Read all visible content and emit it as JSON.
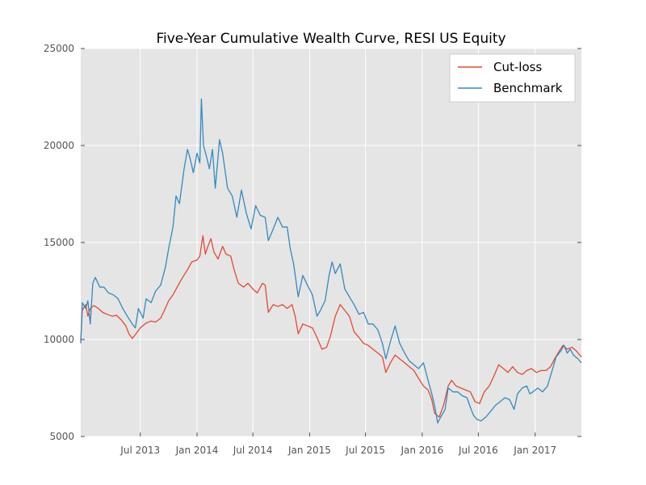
{
  "chart_data": {
    "type": "line",
    "title": "Five-Year Cumulative Wealth Curve, RESI US Equity",
    "xlabel": "",
    "ylabel": "",
    "xlim": [
      "2012-12-20",
      "2017-05-31"
    ],
    "ylim": [
      5000,
      25000
    ],
    "x_ticks": [
      "2013-07-01",
      "2014-01-01",
      "2014-07-01",
      "2015-01-01",
      "2015-07-01",
      "2016-01-01",
      "2016-07-01",
      "2017-01-01"
    ],
    "x_tick_labels": [
      "Jul 2013",
      "Jan 2014",
      "Jul 2014",
      "Jan 2015",
      "Jul 2015",
      "Jan 2016",
      "Jul 2016",
      "Jan 2017"
    ],
    "y_ticks": [
      5000,
      10000,
      15000,
      20000,
      25000
    ],
    "y_tick_labels": [
      "5000",
      "10000",
      "15000",
      "20000",
      "25000"
    ],
    "grid": true,
    "legend_position": "top-right",
    "colors": {
      "background": "#e5e5e5",
      "grid": "#ffffff"
    },
    "series": [
      {
        "name": "Cut-loss",
        "color": "#e24a33",
        "points": [
          [
            "2012-12-20",
            9900
          ],
          [
            "2012-12-25",
            11500
          ],
          [
            "2013-01-05",
            11800
          ],
          [
            "2013-01-12",
            11200
          ],
          [
            "2013-01-20",
            11600
          ],
          [
            "2013-02-01",
            11750
          ],
          [
            "2013-02-15",
            11600
          ],
          [
            "2013-03-01",
            11400
          ],
          [
            "2013-03-15",
            11300
          ],
          [
            "2013-04-01",
            11200
          ],
          [
            "2013-04-15",
            11250
          ],
          [
            "2013-05-01",
            11000
          ],
          [
            "2013-05-15",
            10700
          ],
          [
            "2013-05-25",
            10300
          ],
          [
            "2013-06-05",
            10050
          ],
          [
            "2013-06-15",
            10250
          ],
          [
            "2013-07-01",
            10600
          ],
          [
            "2013-07-20",
            10850
          ],
          [
            "2013-08-05",
            10950
          ],
          [
            "2013-08-20",
            10900
          ],
          [
            "2013-09-05",
            11100
          ],
          [
            "2013-09-20",
            11600
          ],
          [
            "2013-10-01",
            12000
          ],
          [
            "2013-10-15",
            12300
          ],
          [
            "2013-11-01",
            12800
          ],
          [
            "2013-11-15",
            13200
          ],
          [
            "2013-12-01",
            13600
          ],
          [
            "2013-12-15",
            14000
          ],
          [
            "2014-01-01",
            14100
          ],
          [
            "2014-01-10",
            14300
          ],
          [
            "2014-01-20",
            15350
          ],
          [
            "2014-01-28",
            14400
          ],
          [
            "2014-02-05",
            14800
          ],
          [
            "2014-02-15",
            15200
          ],
          [
            "2014-02-25",
            14500
          ],
          [
            "2014-03-10",
            14150
          ],
          [
            "2014-03-25",
            14800
          ],
          [
            "2014-04-05",
            14400
          ],
          [
            "2014-04-20",
            14300
          ],
          [
            "2014-05-01",
            13600
          ],
          [
            "2014-05-15",
            12900
          ],
          [
            "2014-06-01",
            12700
          ],
          [
            "2014-06-15",
            12900
          ],
          [
            "2014-07-01",
            12600
          ],
          [
            "2014-07-15",
            12400
          ],
          [
            "2014-08-01",
            12900
          ],
          [
            "2014-08-10",
            12800
          ],
          [
            "2014-08-20",
            11400
          ],
          [
            "2014-09-05",
            11800
          ],
          [
            "2014-09-20",
            11700
          ],
          [
            "2014-10-05",
            11800
          ],
          [
            "2014-10-20",
            11600
          ],
          [
            "2014-11-05",
            11800
          ],
          [
            "2014-11-15",
            11200
          ],
          [
            "2014-11-25",
            10300
          ],
          [
            "2014-12-10",
            10800
          ],
          [
            "2014-12-25",
            10700
          ],
          [
            "2015-01-10",
            10600
          ],
          [
            "2015-01-25",
            10100
          ],
          [
            "2015-02-10",
            9500
          ],
          [
            "2015-02-25",
            9600
          ],
          [
            "2015-03-10",
            10200
          ],
          [
            "2015-03-25",
            11200
          ],
          [
            "2015-04-10",
            11800
          ],
          [
            "2015-04-25",
            11500
          ],
          [
            "2015-05-10",
            11200
          ],
          [
            "2015-05-25",
            10400
          ],
          [
            "2015-06-10",
            10100
          ],
          [
            "2015-06-25",
            9800
          ],
          [
            "2015-07-10",
            9700
          ],
          [
            "2015-07-25",
            9500
          ],
          [
            "2015-08-10",
            9300
          ],
          [
            "2015-08-25",
            9100
          ],
          [
            "2015-09-05",
            8300
          ],
          [
            "2015-09-20",
            8800
          ],
          [
            "2015-10-05",
            9200
          ],
          [
            "2015-10-20",
            9000
          ],
          [
            "2015-11-05",
            8800
          ],
          [
            "2015-11-20",
            8600
          ],
          [
            "2015-12-05",
            8400
          ],
          [
            "2015-12-20",
            8000
          ],
          [
            "2016-01-05",
            7600
          ],
          [
            "2016-01-20",
            7400
          ],
          [
            "2016-02-01",
            6900
          ],
          [
            "2016-02-10",
            6200
          ],
          [
            "2016-02-25",
            6000
          ],
          [
            "2016-03-10",
            6600
          ],
          [
            "2016-03-25",
            7600
          ],
          [
            "2016-04-05",
            7900
          ],
          [
            "2016-04-20",
            7600
          ],
          [
            "2016-05-05",
            7500
          ],
          [
            "2016-05-20",
            7400
          ],
          [
            "2016-06-05",
            7300
          ],
          [
            "2016-06-20",
            6800
          ],
          [
            "2016-07-05",
            6700
          ],
          [
            "2016-07-20",
            7300
          ],
          [
            "2016-08-05",
            7600
          ],
          [
            "2016-08-20",
            8100
          ],
          [
            "2016-09-05",
            8700
          ],
          [
            "2016-09-20",
            8500
          ],
          [
            "2016-10-05",
            8300
          ],
          [
            "2016-10-20",
            8600
          ],
          [
            "2016-11-05",
            8300
          ],
          [
            "2016-11-20",
            8200
          ],
          [
            "2016-12-05",
            8400
          ],
          [
            "2016-12-20",
            8500
          ],
          [
            "2017-01-05",
            8300
          ],
          [
            "2017-01-20",
            8400
          ],
          [
            "2017-02-05",
            8400
          ],
          [
            "2017-02-20",
            8600
          ],
          [
            "2017-03-05",
            9000
          ],
          [
            "2017-03-20",
            9400
          ],
          [
            "2017-04-01",
            9700
          ],
          [
            "2017-04-15",
            9500
          ],
          [
            "2017-05-01",
            9600
          ],
          [
            "2017-05-15",
            9400
          ],
          [
            "2017-05-31",
            9100
          ]
        ]
      },
      {
        "name": "Benchmark",
        "color": "#348abd",
        "points": [
          [
            "2012-12-20",
            9800
          ],
          [
            "2012-12-25",
            11900
          ],
          [
            "2013-01-05",
            11600
          ],
          [
            "2013-01-12",
            12000
          ],
          [
            "2013-01-20",
            10800
          ],
          [
            "2013-01-28",
            12900
          ],
          [
            "2013-02-05",
            13200
          ],
          [
            "2013-02-20",
            12700
          ],
          [
            "2013-03-05",
            12700
          ],
          [
            "2013-03-20",
            12400
          ],
          [
            "2013-04-05",
            12300
          ],
          [
            "2013-04-20",
            12100
          ],
          [
            "2013-05-05",
            11600
          ],
          [
            "2013-05-20",
            11200
          ],
          [
            "2013-06-05",
            10800
          ],
          [
            "2013-06-15",
            10600
          ],
          [
            "2013-06-25",
            11600
          ],
          [
            "2013-07-10",
            11100
          ],
          [
            "2013-07-20",
            12100
          ],
          [
            "2013-08-05",
            11900
          ],
          [
            "2013-08-20",
            12500
          ],
          [
            "2013-09-05",
            12800
          ],
          [
            "2013-09-20",
            13700
          ],
          [
            "2013-10-01",
            14700
          ],
          [
            "2013-10-15",
            15800
          ],
          [
            "2013-10-25",
            17400
          ],
          [
            "2013-11-05",
            17000
          ],
          [
            "2013-11-20",
            18800
          ],
          [
            "2013-12-01",
            19800
          ],
          [
            "2013-12-10",
            19300
          ],
          [
            "2013-12-20",
            18600
          ],
          [
            "2014-01-01",
            19600
          ],
          [
            "2014-01-10",
            19100
          ],
          [
            "2014-01-15",
            22400
          ],
          [
            "2014-01-22",
            20000
          ],
          [
            "2014-02-01",
            19400
          ],
          [
            "2014-02-10",
            18800
          ],
          [
            "2014-02-20",
            19800
          ],
          [
            "2014-03-01",
            17800
          ],
          [
            "2014-03-15",
            20300
          ],
          [
            "2014-03-25",
            19600
          ],
          [
            "2014-04-10",
            17800
          ],
          [
            "2014-04-25",
            17400
          ],
          [
            "2014-05-10",
            16300
          ],
          [
            "2014-05-25",
            17700
          ],
          [
            "2014-06-10",
            16500
          ],
          [
            "2014-06-25",
            15700
          ],
          [
            "2014-07-10",
            16900
          ],
          [
            "2014-07-25",
            16400
          ],
          [
            "2014-08-10",
            16300
          ],
          [
            "2014-08-20",
            15100
          ],
          [
            "2014-09-05",
            15700
          ],
          [
            "2014-09-20",
            16300
          ],
          [
            "2014-10-05",
            15800
          ],
          [
            "2014-10-20",
            15800
          ],
          [
            "2014-10-30",
            14700
          ],
          [
            "2014-11-10",
            13900
          ],
          [
            "2014-11-25",
            12200
          ],
          [
            "2014-12-10",
            13300
          ],
          [
            "2014-12-25",
            12800
          ],
          [
            "2015-01-10",
            12300
          ],
          [
            "2015-01-25",
            11200
          ],
          [
            "2015-02-05",
            11500
          ],
          [
            "2015-02-20",
            12000
          ],
          [
            "2015-03-05",
            13300
          ],
          [
            "2015-03-15",
            14000
          ],
          [
            "2015-03-25",
            13400
          ],
          [
            "2015-04-10",
            13900
          ],
          [
            "2015-04-25",
            12600
          ],
          [
            "2015-05-10",
            12200
          ],
          [
            "2015-05-25",
            11800
          ],
          [
            "2015-06-10",
            11300
          ],
          [
            "2015-06-25",
            11400
          ],
          [
            "2015-07-10",
            10800
          ],
          [
            "2015-07-25",
            10800
          ],
          [
            "2015-08-10",
            10500
          ],
          [
            "2015-08-25",
            9800
          ],
          [
            "2015-09-05",
            9000
          ],
          [
            "2015-09-20",
            9900
          ],
          [
            "2015-10-05",
            10700
          ],
          [
            "2015-10-20",
            9800
          ],
          [
            "2015-11-05",
            9300
          ],
          [
            "2015-11-20",
            8900
          ],
          [
            "2015-12-05",
            8700
          ],
          [
            "2015-12-20",
            8500
          ],
          [
            "2016-01-05",
            8800
          ],
          [
            "2016-01-20",
            7900
          ],
          [
            "2016-02-01",
            7200
          ],
          [
            "2016-02-10",
            6600
          ],
          [
            "2016-02-20",
            5700
          ],
          [
            "2016-03-01",
            6000
          ],
          [
            "2016-03-15",
            6400
          ],
          [
            "2016-03-25",
            7500
          ],
          [
            "2016-04-10",
            7300
          ],
          [
            "2016-04-25",
            7300
          ],
          [
            "2016-05-10",
            7100
          ],
          [
            "2016-05-25",
            7000
          ],
          [
            "2016-06-05",
            6500
          ],
          [
            "2016-06-15",
            6100
          ],
          [
            "2016-06-25",
            5900
          ],
          [
            "2016-07-10",
            5800
          ],
          [
            "2016-07-25",
            6000
          ],
          [
            "2016-08-10",
            6300
          ],
          [
            "2016-08-25",
            6600
          ],
          [
            "2016-09-10",
            6800
          ],
          [
            "2016-09-25",
            7000
          ],
          [
            "2016-10-10",
            6900
          ],
          [
            "2016-10-25",
            6400
          ],
          [
            "2016-11-05",
            7200
          ],
          [
            "2016-11-20",
            7500
          ],
          [
            "2016-12-05",
            7600
          ],
          [
            "2016-12-15",
            7200
          ],
          [
            "2016-12-25",
            7300
          ],
          [
            "2017-01-10",
            7500
          ],
          [
            "2017-01-25",
            7300
          ],
          [
            "2017-02-10",
            7600
          ],
          [
            "2017-02-25",
            8400
          ],
          [
            "2017-03-10",
            9100
          ],
          [
            "2017-03-25",
            9400
          ],
          [
            "2017-04-05",
            9700
          ],
          [
            "2017-04-15",
            9300
          ],
          [
            "2017-04-25",
            9500
          ],
          [
            "2017-05-05",
            9200
          ],
          [
            "2017-05-20",
            9000
          ],
          [
            "2017-05-31",
            8800
          ]
        ]
      }
    ]
  }
}
